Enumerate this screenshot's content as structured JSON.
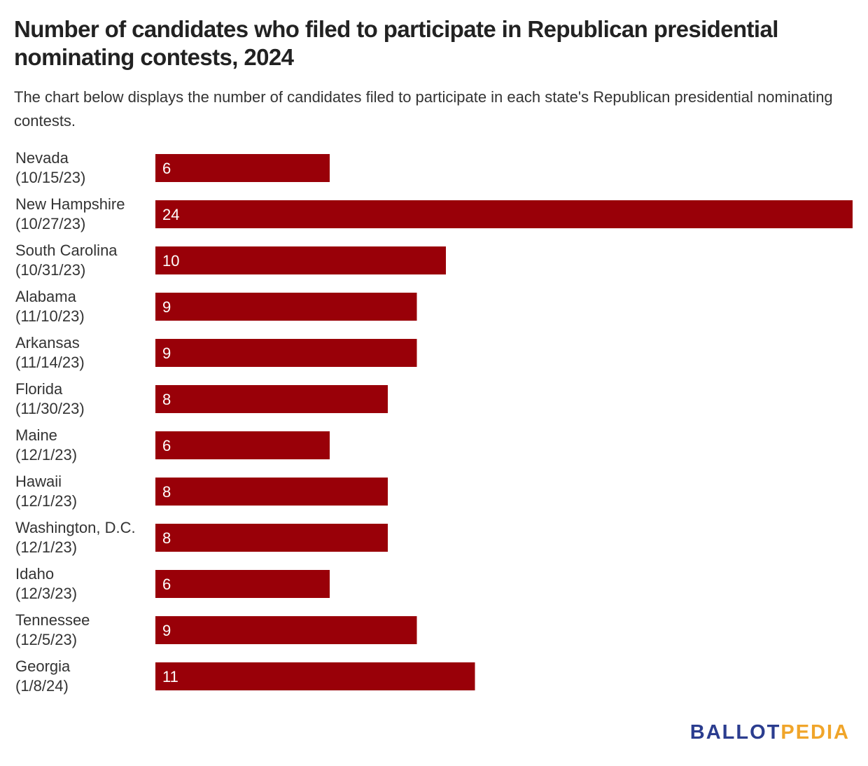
{
  "title": "Number of candidates who filed to participate in Republican presidential nominating contests, 2024",
  "subtitle": "The chart below displays the number of candidates filed to participate in each state's Republican presidential nominating contests.",
  "chart_data": {
    "type": "bar",
    "orientation": "horizontal",
    "categories": [
      {
        "name": "Nevada",
        "date": "(10/15/23)"
      },
      {
        "name": "New Hampshire",
        "date": "(10/27/23)"
      },
      {
        "name": "South Carolina",
        "date": "(10/31/23)"
      },
      {
        "name": "Alabama",
        "date": "(11/10/23)"
      },
      {
        "name": "Arkansas",
        "date": "(11/14/23)"
      },
      {
        "name": "Florida",
        "date": "(11/30/23)"
      },
      {
        "name": "Maine",
        "date": "(12/1/23)"
      },
      {
        "name": "Hawaii",
        "date": "(12/1/23)"
      },
      {
        "name": "Washington, D.C.",
        "date": "(12/1/23)"
      },
      {
        "name": "Idaho",
        "date": "(12/3/23)"
      },
      {
        "name": "Tennessee",
        "date": "(12/5/23)"
      },
      {
        "name": "Georgia",
        "date": "(1/8/24)"
      }
    ],
    "values": [
      6,
      24,
      10,
      9,
      9,
      8,
      6,
      8,
      8,
      6,
      9,
      11
    ],
    "xlim": [
      0,
      24
    ],
    "bar_color": "#990008",
    "grid": false,
    "legend": false
  },
  "logo": {
    "part1": "BALLOT",
    "part2": "PEDIA",
    "color1": "#2b3d8f",
    "color2": "#f0a52a"
  }
}
